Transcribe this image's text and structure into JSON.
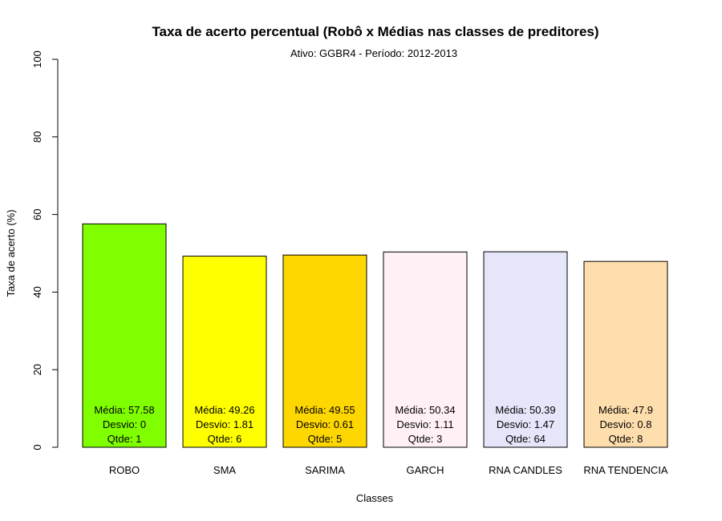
{
  "chart_data": {
    "type": "bar",
    "title": "Taxa de acerto percentual (Robô x Médias nas classes de preditores)",
    "subtitle": "Ativo:  GGBR4  - Período: 2012-2013",
    "xlabel": "Classes",
    "ylabel": "Taxa de acerto (%)",
    "ylim": [
      0,
      100
    ],
    "yticks": [
      0,
      20,
      40,
      60,
      80,
      100
    ],
    "grid": false,
    "categories": [
      "ROBO",
      "SMA",
      "SARIMA",
      "GARCH",
      "RNA CANDLES",
      "RNA TENDENCIA"
    ],
    "values": [
      57.58,
      49.26,
      49.55,
      50.34,
      50.39,
      47.9
    ],
    "colors": [
      "#7fff00",
      "#ffff00",
      "#ffd700",
      "#fff0f5",
      "#e6e6fa",
      "#ffdead"
    ],
    "annotations": [
      {
        "media": "Média: 57.58",
        "desvio": "Desvio: 0",
        "qtde": "Qtde: 1"
      },
      {
        "media": "Média: 49.26",
        "desvio": "Desvio: 1.81",
        "qtde": "Qtde: 6"
      },
      {
        "media": "Média: 49.55",
        "desvio": "Desvio: 0.61",
        "qtde": "Qtde: 5"
      },
      {
        "media": "Média: 50.34",
        "desvio": "Desvio: 1.11",
        "qtde": "Qtde: 3"
      },
      {
        "media": "Média: 50.39",
        "desvio": "Desvio: 1.47",
        "qtde": "Qtde: 64"
      },
      {
        "media": "Média: 47.9",
        "desvio": "Desvio: 0.8",
        "qtde": "Qtde: 8"
      }
    ]
  }
}
